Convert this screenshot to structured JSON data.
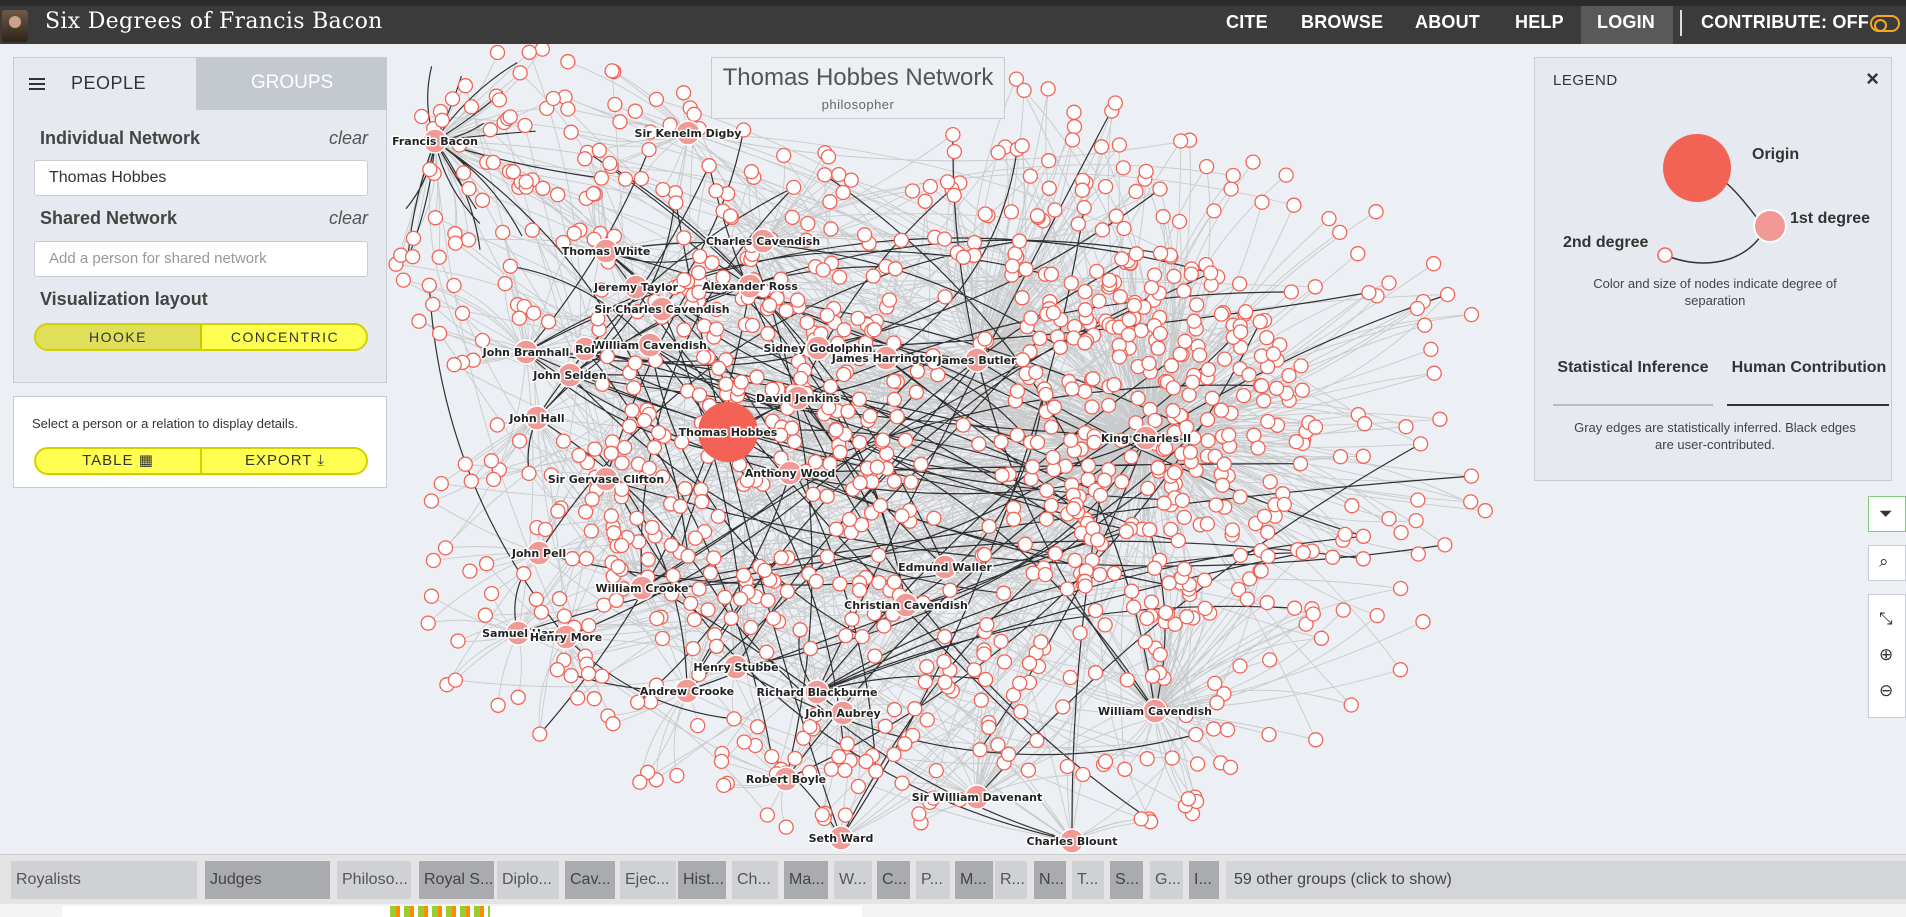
{
  "header": {
    "site_title": "Six Degrees of Francis Bacon",
    "nav": [
      "CITE",
      "BROWSE",
      "ABOUT",
      "HELP",
      "LOGIN"
    ],
    "contribute_label": "CONTRIBUTE: OFF"
  },
  "left_panel": {
    "tabs": [
      "PEOPLE",
      "GROUPS"
    ],
    "individual_network": {
      "title": "Individual Network",
      "clear": "clear",
      "value": "Thomas Hobbes"
    },
    "shared_network": {
      "title": "Shared Network",
      "clear": "clear",
      "placeholder": "Add a person for shared network"
    },
    "layout": {
      "title": "Visualization layout",
      "options": [
        "HOOKE",
        "CONCENTRIC"
      ],
      "selected": "HOOKE"
    }
  },
  "detail_panel": {
    "message": "Select a person or a relation to display details.",
    "table_label": "TABLE ▦",
    "export_label": "EXPORT ⤓"
  },
  "network": {
    "title": "Thomas Hobbes Network",
    "subtitle": "philosopher",
    "colors": {
      "node": "#f26355",
      "node_first": "#f19a95",
      "edge_inferred": "#bdbdbd",
      "edge_user": "#111111",
      "background": "#eceff3"
    },
    "labels": [
      "Francis Bacon",
      "Sir Kenelm Digby",
      "Thomas White",
      "Charles Cavendish",
      "Jeremy Taylor",
      "Alexander Ross",
      "Sir Charles Cavendish",
      "John Bramhall",
      "William Cavendish",
      "Sidney Godolphin",
      "James Harrington",
      "James Butler",
      "John Selden",
      "David Jenkins",
      "John Hall",
      "Thomas Hobbes",
      "King Charles II",
      "Sir Gervase Clifton",
      "Anthony Wood",
      "John Pell",
      "Edmund Waller",
      "William Crooke",
      "Christian Cavendish",
      "Samuel Har",
      "Henry More",
      "Henry Stubbe",
      "Andrew Crooke",
      "Richard Blackburne",
      "John Aubrey",
      "William Cavendish",
      "Robert Boyle",
      "Sir William Davenant",
      "Seth Ward",
      "Charles Blount",
      "Rol"
    ]
  },
  "legend": {
    "title": "LEGEND",
    "close": "×",
    "origin": "Origin",
    "first": "1st degree",
    "second": "2nd degree",
    "description": "Color and size of nodes indicate degree of separation",
    "tabs": [
      "Statistical Inference",
      "Human Contribution"
    ],
    "note": "Gray edges are statistically inferred. Black edges are user-contributed."
  },
  "toolbar_icons": [
    "filter-icon",
    "search-icon",
    "compress-icon",
    "zoom-in-icon",
    "zoom-out-icon"
  ],
  "groups_bar": {
    "groups": [
      "Royalists",
      "Judges",
      "Philoso...",
      "Royal S...",
      "Diplo...",
      "Cav...",
      "Ejec...",
      "Hist...",
      "Ch...",
      "Ma...",
      "W...",
      "C...",
      "P...",
      "M...",
      "R...",
      "N...",
      "T...",
      "S...",
      "G...",
      "I..."
    ],
    "more": "59 other groups (click to show)"
  }
}
